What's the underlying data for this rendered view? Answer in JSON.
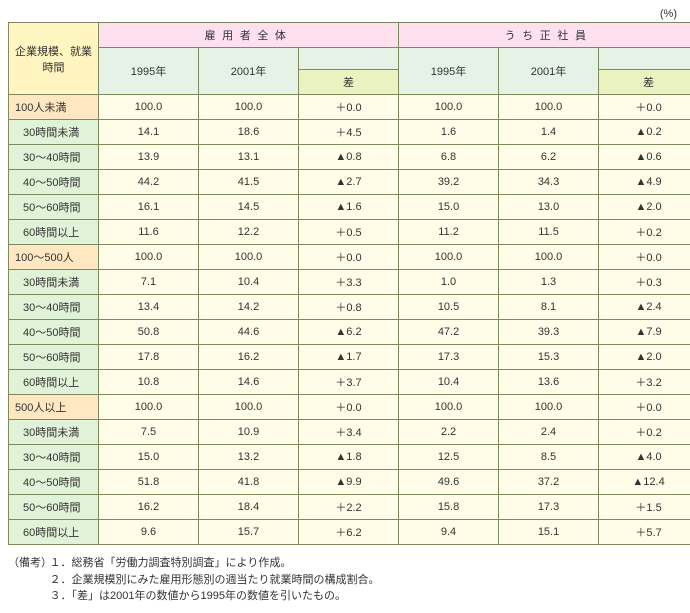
{
  "unit": "(%)",
  "header": {
    "corner": "企業規模、就業時間",
    "group_all": "雇用者全体",
    "group_reg": "うち正社員",
    "y1995": "1995年",
    "y2001": "2001年",
    "diff": "差"
  },
  "groups": [
    {
      "label": "100人未満",
      "total": {
        "a95": "100.0",
        "a01": "100.0",
        "ad": "＋0.0",
        "r95": "100.0",
        "r01": "100.0",
        "rd": "＋0.0"
      },
      "rows": [
        {
          "label": "30時間未満",
          "a95": "14.1",
          "a01": "18.6",
          "ad": "＋4.5",
          "r95": "1.6",
          "r01": "1.4",
          "rd": "▲0.2"
        },
        {
          "label": "30～40時間",
          "a95": "13.9",
          "a01": "13.1",
          "ad": "▲0.8",
          "r95": "6.8",
          "r01": "6.2",
          "rd": "▲0.6"
        },
        {
          "label": "40～50時間",
          "a95": "44.2",
          "a01": "41.5",
          "ad": "▲2.7",
          "r95": "39.2",
          "r01": "34.3",
          "rd": "▲4.9"
        },
        {
          "label": "50～60時間",
          "a95": "16.1",
          "a01": "14.5",
          "ad": "▲1.6",
          "r95": "15.0",
          "r01": "13.0",
          "rd": "▲2.0"
        },
        {
          "label": "60時間以上",
          "a95": "11.6",
          "a01": "12.2",
          "ad": "＋0.5",
          "r95": "11.2",
          "r01": "11.5",
          "rd": "＋0.2"
        }
      ]
    },
    {
      "label": "100～500人",
      "total": {
        "a95": "100.0",
        "a01": "100.0",
        "ad": "＋0.0",
        "r95": "100.0",
        "r01": "100.0",
        "rd": "＋0.0"
      },
      "rows": [
        {
          "label": "30時間未満",
          "a95": "7.1",
          "a01": "10.4",
          "ad": "＋3.3",
          "r95": "1.0",
          "r01": "1.3",
          "rd": "＋0.3"
        },
        {
          "label": "30～40時間",
          "a95": "13.4",
          "a01": "14.2",
          "ad": "＋0.8",
          "r95": "10.5",
          "r01": "8.1",
          "rd": "▲2.4"
        },
        {
          "label": "40～50時間",
          "a95": "50.8",
          "a01": "44.6",
          "ad": "▲6.2",
          "r95": "47.2",
          "r01": "39.3",
          "rd": "▲7.9"
        },
        {
          "label": "50～60時間",
          "a95": "17.8",
          "a01": "16.2",
          "ad": "▲1.7",
          "r95": "17.3",
          "r01": "15.3",
          "rd": "▲2.0"
        },
        {
          "label": "60時間以上",
          "a95": "10.8",
          "a01": "14.6",
          "ad": "＋3.7",
          "r95": "10.4",
          "r01": "13.6",
          "rd": "＋3.2"
        }
      ]
    },
    {
      "label": "500人以上",
      "total": {
        "a95": "100.0",
        "a01": "100.0",
        "ad": "＋0.0",
        "r95": "100.0",
        "r01": "100.0",
        "rd": "＋0.0"
      },
      "rows": [
        {
          "label": "30時間未満",
          "a95": "7.5",
          "a01": "10.9",
          "ad": "＋3.4",
          "r95": "2.2",
          "r01": "2.4",
          "rd": "＋0.2"
        },
        {
          "label": "30～40時間",
          "a95": "15.0",
          "a01": "13.2",
          "ad": "▲1.8",
          "r95": "12.5",
          "r01": "8.5",
          "rd": "▲4.0"
        },
        {
          "label": "40～50時間",
          "a95": "51.8",
          "a01": "41.8",
          "ad": "▲9.9",
          "r95": "49.6",
          "r01": "37.2",
          "rd": "▲12.4"
        },
        {
          "label": "50～60時間",
          "a95": "16.2",
          "a01": "18.4",
          "ad": "＋2.2",
          "r95": "15.8",
          "r01": "17.3",
          "rd": "＋1.5"
        },
        {
          "label": "60時間以上",
          "a95": "9.6",
          "a01": "15.7",
          "ad": "＋6.2",
          "r95": "9.4",
          "r01": "15.1",
          "rd": "＋5.7"
        }
      ]
    }
  ],
  "notes": {
    "label": "（備考）",
    "lines": [
      "１．総務省「労働力調査特別調査」により作成。",
      "２．企業規模別にみた雇用形態別の週当たり就業時間の構成割合。",
      "３．「差」は2001年の数値から1995年の数値を引いたもの。"
    ]
  }
}
